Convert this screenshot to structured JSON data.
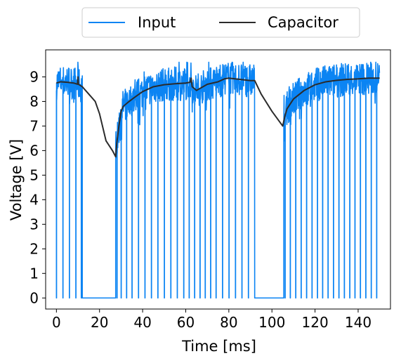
{
  "chart_data": {
    "type": "line",
    "xlabel": "Time [ms]",
    "ylabel": "Voltage [V]",
    "xlim": [
      -5,
      155
    ],
    "ylim": [
      -0.45,
      10.1
    ],
    "xticks": [
      0,
      20,
      40,
      60,
      80,
      100,
      120,
      140
    ],
    "yticks": [
      0,
      1,
      2,
      3,
      4,
      5,
      6,
      7,
      8,
      9
    ],
    "xtick_labels": [
      "0",
      "20",
      "40",
      "60",
      "80",
      "100",
      "120",
      "140"
    ],
    "ytick_labels": [
      "0",
      "1",
      "2",
      "3",
      "4",
      "5",
      "6",
      "7",
      "8",
      "9"
    ],
    "grid": false,
    "legend_position": "top-center, outside",
    "series": [
      {
        "name": "Input",
        "color": "#0b84f3",
        "style": "noisy PWM: high level near 8.5–9.5 V, periodic drops to 0 V, flat 0 V gaps",
        "segments": [
          {
            "x_start": 0,
            "x_end": 12,
            "high_min": 7.6,
            "high_max": 9.4,
            "spike_times": [
              0,
              3,
              6,
              9,
              11.5
            ]
          },
          {
            "x_start": 12,
            "x_end": 27.5,
            "flat_value": 0
          },
          {
            "x_start": 27.5,
            "x_end": 92,
            "spike_times": [
              28,
              30,
              32.5,
              35,
              38,
              41,
              44,
              47,
              50,
              53,
              56,
              59,
              61.5,
              64,
              66.5,
              69,
              71.5,
              74,
              77,
              80,
              83,
              86,
              89
            ]
          },
          {
            "x_start": 92,
            "x_end": 105.5,
            "flat_value": 0
          },
          {
            "x_start": 105.5,
            "x_end": 150,
            "spike_times": [
              106,
              108.5,
              111,
              113.5,
              116,
              118.5,
              121,
              123.5,
              126,
              128.5,
              131,
              133.5,
              136,
              138.5,
              141,
              143.5,
              146,
              148.5
            ]
          }
        ]
      },
      {
        "name": "Capacitor",
        "color": "#2b2b2b",
        "x": [
          0,
          2,
          5,
          8,
          9.8,
          10,
          10.2,
          12,
          15,
          18,
          20,
          23,
          26,
          27.5,
          28,
          29,
          30,
          31,
          33,
          36,
          40,
          45,
          50,
          55,
          60,
          62,
          62.5,
          63,
          65,
          68,
          70,
          75,
          78,
          80,
          85,
          90,
          92,
          95,
          100,
          105,
          106,
          107,
          110,
          115,
          120,
          125,
          130,
          135,
          140,
          145,
          150
        ],
        "y": [
          8.75,
          8.8,
          8.78,
          8.75,
          8.7,
          9.0,
          8.7,
          8.6,
          8.3,
          8.0,
          7.5,
          6.4,
          6.0,
          5.75,
          6.3,
          7.0,
          7.6,
          7.8,
          7.95,
          8.15,
          8.4,
          8.6,
          8.68,
          8.72,
          8.75,
          8.78,
          8.95,
          8.6,
          8.45,
          8.6,
          8.7,
          8.8,
          8.92,
          8.95,
          8.9,
          8.85,
          8.85,
          8.3,
          7.6,
          7.0,
          7.4,
          7.7,
          8.1,
          8.45,
          8.68,
          8.8,
          8.86,
          8.9,
          8.92,
          8.95,
          8.95
        ]
      }
    ]
  }
}
